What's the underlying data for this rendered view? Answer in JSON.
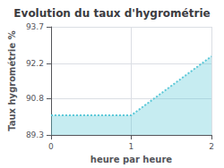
{
  "chart_data": {
    "type": "area",
    "title": "Evolution du taux d'hygrométrie",
    "xlabel": "heure par heure",
    "ylabel": "Taux hygrométrie %",
    "x": [
      0,
      1,
      2
    ],
    "values": [
      90.1,
      90.1,
      92.5
    ],
    "xlim": [
      0,
      2
    ],
    "ylim": [
      89.3,
      93.7
    ],
    "xticks": [
      0,
      1,
      2
    ],
    "yticks": [
      89.3,
      90.8,
      92.2,
      93.7
    ],
    "color": "#5bc8d8",
    "line_style": "dotted",
    "grid": true
  }
}
